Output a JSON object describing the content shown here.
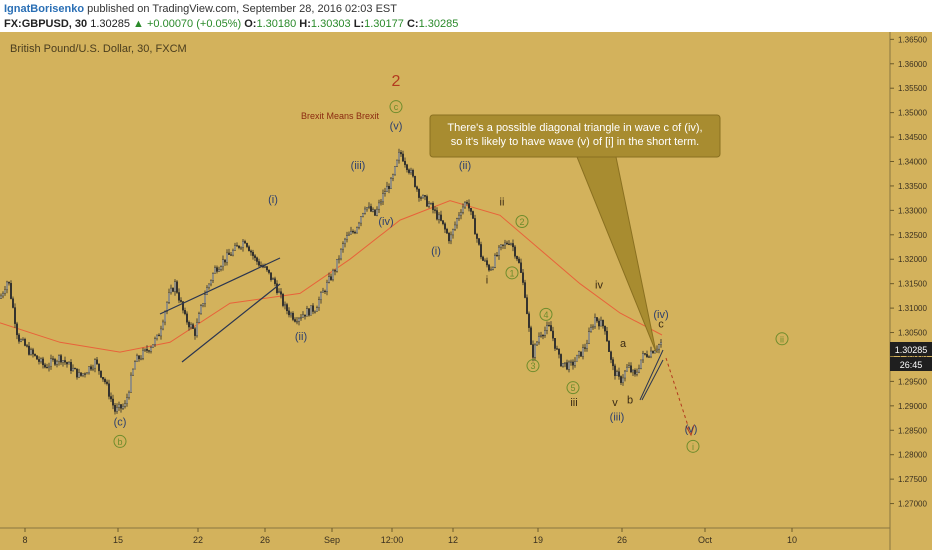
{
  "header": {
    "author": "IgnatBorisenko",
    "published": "published on TradingView.com, September 28, 2016 02:03 EST",
    "symbol": "FX:GBPUSD, 30",
    "last": "1.30285",
    "change": "+0.00070 (+0.05%)",
    "o_label": "O:",
    "o": "1.30180",
    "h_label": "H:",
    "h": "1.30303",
    "l_label": "L:",
    "l": "1.30177",
    "c_label": "C:",
    "c": "1.30285"
  },
  "chart_title": "British Pound/U.S. Dollar, 30, FXCM",
  "price_badge": "1.30285",
  "countdown_badge": "26:45",
  "annotation": "There's a possible diagonal triangle in wave c of (iv), so it's likely to have wave (v) of [i] in the short term.",
  "brexit_label": "Brexit Means Brexit",
  "colors": {
    "background": "#d3b25c",
    "candles": "#2b2b2b",
    "ma_line": "#e8623a",
    "wave_green": "#6e8c2c",
    "wave_navy": "#2c3f6e",
    "wave_red": "#b33a1e",
    "callout": "#a88c30"
  },
  "chart_data": {
    "type": "candlestick",
    "title": "British Pound/U.S. Dollar, 30, FXCM",
    "ylim": [
      1.265,
      1.3665
    ],
    "y_ticks": [
      "1.36500",
      "1.36000",
      "1.35500",
      "1.35000",
      "1.34500",
      "1.34000",
      "1.33500",
      "1.33000",
      "1.32500",
      "1.32000",
      "1.31500",
      "1.31000",
      "1.30500",
      "1.30000",
      "1.29500",
      "1.29000",
      "1.28500",
      "1.28000",
      "1.27500",
      "1.27000"
    ],
    "x_ticks": [
      "8",
      "15",
      "22",
      "26",
      "Sep",
      "12:00",
      "12",
      "19",
      "26",
      "Oct",
      "10"
    ],
    "approx_close_path": [
      [
        0,
        1.312
      ],
      [
        8,
        1.316
      ],
      [
        18,
        1.304
      ],
      [
        30,
        1.301
      ],
      [
        45,
        1.298
      ],
      [
        60,
        1.3
      ],
      [
        80,
        1.296
      ],
      [
        95,
        1.299
      ],
      [
        105,
        1.295
      ],
      [
        115,
        1.289
      ],
      [
        125,
        1.29
      ],
      [
        135,
        1.299
      ],
      [
        145,
        1.301
      ],
      [
        158,
        1.304
      ],
      [
        168,
        1.312
      ],
      [
        175,
        1.315
      ],
      [
        185,
        1.308
      ],
      [
        195,
        1.305
      ],
      [
        205,
        1.313
      ],
      [
        215,
        1.318
      ],
      [
        225,
        1.32
      ],
      [
        235,
        1.322
      ],
      [
        245,
        1.324
      ],
      [
        255,
        1.32
      ],
      [
        265,
        1.318
      ],
      [
        275,
        1.315
      ],
      [
        285,
        1.31
      ],
      [
        295,
        1.308
      ],
      [
        305,
        1.309
      ],
      [
        315,
        1.31
      ],
      [
        325,
        1.314
      ],
      [
        335,
        1.318
      ],
      [
        345,
        1.324
      ],
      [
        355,
        1.326
      ],
      [
        365,
        1.331
      ],
      [
        375,
        1.329
      ],
      [
        385,
        1.334
      ],
      [
        392,
        1.336
      ],
      [
        400,
        1.342
      ],
      [
        410,
        1.338
      ],
      [
        420,
        1.333
      ],
      [
        430,
        1.331
      ],
      [
        440,
        1.328
      ],
      [
        450,
        1.324
      ],
      [
        460,
        1.33
      ],
      [
        467,
        1.332
      ],
      [
        475,
        1.326
      ],
      [
        482,
        1.32
      ],
      [
        490,
        1.318
      ],
      [
        500,
        1.322
      ],
      [
        510,
        1.324
      ],
      [
        518,
        1.32
      ],
      [
        525,
        1.313
      ],
      [
        532,
        1.3
      ],
      [
        540,
        1.305
      ],
      [
        550,
        1.306
      ],
      [
        560,
        1.299
      ],
      [
        570,
        1.298
      ],
      [
        578,
        1.3
      ],
      [
        585,
        1.302
      ],
      [
        595,
        1.308
      ],
      [
        605,
        1.306
      ],
      [
        612,
        1.298
      ],
      [
        620,
        1.295
      ],
      [
        628,
        1.298
      ],
      [
        635,
        1.296
      ],
      [
        642,
        1.3
      ],
      [
        650,
        1.301
      ],
      [
        656,
        1.302
      ],
      [
        662,
        1.303
      ]
    ],
    "moving_average": [
      [
        0,
        1.307
      ],
      [
        60,
        1.303
      ],
      [
        120,
        1.301
      ],
      [
        170,
        1.303
      ],
      [
        230,
        1.311
      ],
      [
        300,
        1.313
      ],
      [
        350,
        1.32
      ],
      [
        400,
        1.328
      ],
      [
        450,
        1.332
      ],
      [
        500,
        1.329
      ],
      [
        540,
        1.322
      ],
      [
        580,
        1.315
      ],
      [
        620,
        1.309
      ],
      [
        662,
        1.3045
      ]
    ],
    "wave_labels": [
      {
        "text": "2",
        "price": 1.3555,
        "x": 396,
        "color": "red"
      },
      {
        "text": "c",
        "price": 1.3505,
        "x": 396,
        "color": "green",
        "circled": true
      },
      {
        "text": "(v)",
        "price": 1.3465,
        "x": 396,
        "color": "navy"
      },
      {
        "text": "(iii)",
        "price": 1.3385,
        "x": 358,
        "color": "navy"
      },
      {
        "text": "(iv)",
        "price": 1.327,
        "x": 386,
        "color": "navy"
      },
      {
        "text": "(i)",
        "price": 1.3315,
        "x": 273,
        "color": "navy"
      },
      {
        "text": "(ii)",
        "price": 1.3035,
        "x": 301,
        "color": "navy"
      },
      {
        "text": "(ii)",
        "price": 1.3385,
        "x": 465,
        "color": "navy"
      },
      {
        "text": "(i)",
        "price": 1.321,
        "x": 436,
        "color": "navy"
      },
      {
        "text": "ii",
        "price": 1.331,
        "x": 502,
        "color": "brown"
      },
      {
        "text": "i",
        "price": 1.315,
        "x": 487,
        "color": "brown"
      },
      {
        "text": "2",
        "price": 1.327,
        "x": 522,
        "color": "green",
        "circled": true
      },
      {
        "text": "1",
        "price": 1.3165,
        "x": 512,
        "color": "green",
        "circled": true
      },
      {
        "text": "4",
        "price": 1.308,
        "x": 546,
        "color": "green",
        "circled": true
      },
      {
        "text": "3",
        "price": 1.2975,
        "x": 533,
        "color": "green",
        "circled": true
      },
      {
        "text": "5",
        "price": 1.293,
        "x": 573,
        "color": "green",
        "circled": true
      },
      {
        "text": "iii",
        "price": 1.29,
        "x": 574,
        "color": "brown"
      },
      {
        "text": "iv",
        "price": 1.314,
        "x": 599,
        "color": "brown"
      },
      {
        "text": "v",
        "price": 1.29,
        "x": 615,
        "color": "brown"
      },
      {
        "text": "(iii)",
        "price": 1.287,
        "x": 617,
        "color": "navy"
      },
      {
        "text": "a",
        "price": 1.302,
        "x": 623,
        "color": "brown"
      },
      {
        "text": "b",
        "price": 1.2905,
        "x": 630,
        "color": "brown"
      },
      {
        "text": "c",
        "price": 1.306,
        "x": 661,
        "color": "brown"
      },
      {
        "text": "(iv)",
        "price": 1.308,
        "x": 661,
        "color": "navy"
      },
      {
        "text": "(v)",
        "price": 1.2845,
        "x": 691,
        "color": "navy"
      },
      {
        "text": "i",
        "price": 1.281,
        "x": 693,
        "color": "green",
        "circled": true
      },
      {
        "text": "ii",
        "price": 1.303,
        "x": 782,
        "color": "green",
        "circled": true
      },
      {
        "text": "(c)",
        "price": 1.286,
        "x": 120,
        "color": "navy"
      },
      {
        "text": "b",
        "price": 1.282,
        "x": 120,
        "color": "green",
        "circled": true
      }
    ]
  }
}
